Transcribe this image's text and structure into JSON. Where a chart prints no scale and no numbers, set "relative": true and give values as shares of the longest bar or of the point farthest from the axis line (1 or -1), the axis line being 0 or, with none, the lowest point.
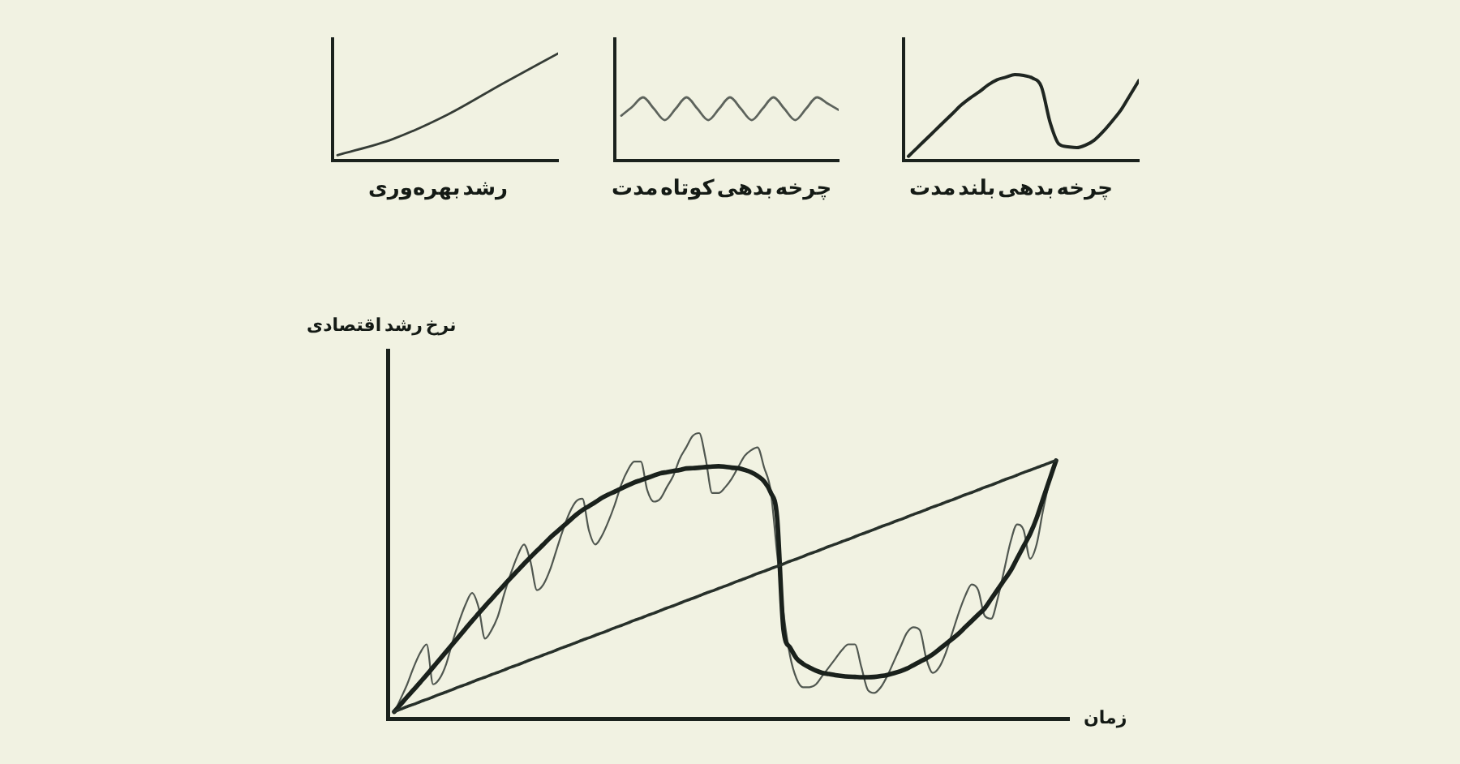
{
  "chart_data": [
    {
      "type": "line",
      "title": "رشد بهره‌وری",
      "relative": true,
      "categories": [
        null,
        null,
        null,
        null,
        null
      ],
      "series": [
        {
          "color": "#353c36",
          "values": [
            0.05,
            0.2,
            0.43,
            0.72,
            1
          ]
        }
      ]
    },
    {
      "type": "line",
      "title": "چرخه بدهی کوتاه مدت",
      "relative": true,
      "categories": [
        null,
        null,
        null,
        null,
        null,
        null,
        null,
        null,
        null,
        null,
        null,
        null,
        null,
        null,
        null,
        null,
        null,
        null,
        null,
        null,
        null
      ],
      "series": [
        {
          "color": "#5d635c",
          "values": [
            0.71,
            0.85,
            1,
            0.82,
            0.64,
            0.82,
            1,
            0.82,
            0.64,
            0.82,
            1,
            0.82,
            0.64,
            0.82,
            1,
            0.82,
            0.64,
            0.82,
            1,
            0.9,
            0.8
          ]
        }
      ]
    },
    {
      "type": "line",
      "title": "چرخه بدهی بلند مدت",
      "relative": true,
      "categories": [
        null,
        null,
        null,
        null,
        null,
        null,
        null,
        null,
        null,
        null,
        null,
        null,
        null,
        null,
        null,
        null,
        null,
        null,
        null,
        null,
        null,
        null,
        null,
        null,
        null,
        null,
        null
      ],
      "series": [
        {
          "color": "#1f2621",
          "values": [
            0.05,
            0.15,
            0.25,
            0.35,
            0.45,
            0.55,
            0.65,
            0.73,
            0.8,
            0.88,
            0.94,
            0.97,
            1,
            0.99,
            0.96,
            0.86,
            0.44,
            0.19,
            0.16,
            0.15,
            0.18,
            0.24,
            0.34,
            0.46,
            0.59,
            0.76,
            0.93
          ]
        }
      ]
    },
    {
      "type": "line",
      "xlabel": "زمان",
      "ylabel": "نرخ رشد اقتصادی",
      "relative": true,
      "categories": [
        null,
        null,
        null,
        null,
        null,
        null,
        null,
        null,
        null,
        null,
        null,
        null,
        null,
        null,
        null,
        null,
        null,
        null,
        null,
        null,
        null,
        null,
        null,
        null,
        null,
        null,
        null,
        null,
        null,
        null,
        null,
        null,
        null,
        null,
        null,
        null,
        null,
        null,
        null,
        null,
        null,
        null,
        null,
        null,
        null,
        null,
        null,
        null,
        null,
        null,
        null,
        null,
        null,
        null,
        null,
        null,
        null,
        null,
        null,
        null,
        null,
        null,
        null,
        null,
        null,
        null,
        null,
        null,
        null,
        null,
        null,
        null,
        null,
        null,
        null,
        null,
        null,
        null,
        null,
        null,
        null,
        null,
        null,
        null,
        null,
        null,
        null,
        null,
        null,
        null,
        null,
        null,
        null,
        null,
        null,
        null,
        null,
        null,
        null,
        null,
        null,
        null,
        null
      ],
      "series": [
        {
          "color": "#27302a",
          "values": [
            0.024,
            0.033,
            0.042,
            0.05,
            0.059,
            0.067,
            0.076,
            0.085,
            0.093,
            0.102,
            0.111,
            0.119,
            0.128,
            0.137,
            0.145,
            0.154,
            0.162,
            0.171,
            0.18,
            0.188,
            0.197,
            0.206,
            0.214,
            0.223,
            0.231,
            0.24,
            0.249,
            0.257,
            0.266,
            0.275,
            0.283,
            0.292,
            0.3,
            0.309,
            0.318,
            0.326,
            0.335,
            0.344,
            0.352,
            0.361,
            0.369,
            0.378,
            0.387,
            0.395,
            0.404,
            0.413,
            0.421,
            0.43,
            0.439,
            0.447,
            0.456,
            0.464,
            0.473,
            0.482,
            0.49,
            0.499,
            0.508,
            0.516,
            0.525,
            0.533,
            0.542,
            0.551,
            0.559,
            0.568,
            0.577,
            0.585,
            0.594,
            0.603,
            0.611,
            0.62,
            0.628,
            0.637,
            0.646,
            0.654,
            0.663,
            0.672,
            0.68,
            0.689,
            0.697,
            0.706,
            0.715,
            0.723,
            0.732,
            0.741,
            0.749,
            0.758,
            0.766,
            0.775,
            0.784,
            0.792,
            0.801,
            0.81,
            0.818,
            0.827,
            0.836,
            0.844,
            0.853,
            0.862,
            0.87,
            0.879,
            0.887,
            0.896,
            0.904
          ]
        },
        {
          "color": "#1a211c",
          "values": [
            0.024,
            0.05,
            0.076,
            0.101,
            0.127,
            0.153,
            0.18,
            0.207,
            0.234,
            0.261,
            0.288,
            0.315,
            0.342,
            0.368,
            0.394,
            0.419,
            0.444,
            0.469,
            0.494,
            0.518,
            0.542,
            0.565,
            0.588,
            0.61,
            0.633,
            0.653,
            0.673,
            0.693,
            0.713,
            0.73,
            0.744,
            0.758,
            0.773,
            0.785,
            0.795,
            0.806,
            0.817,
            0.827,
            0.835,
            0.843,
            0.851,
            0.859,
            0.863,
            0.867,
            0.871,
            0.876,
            0.877,
            0.879,
            0.881,
            0.883,
            0.884,
            0.882,
            0.879,
            0.877,
            0.871,
            0.863,
            0.85,
            0.831,
            0.793,
            0.706,
            0.31,
            0.249,
            0.211,
            0.192,
            0.179,
            0.168,
            0.16,
            0.156,
            0.152,
            0.149,
            0.147,
            0.146,
            0.145,
            0.145,
            0.146,
            0.149,
            0.153,
            0.159,
            0.166,
            0.175,
            0.187,
            0.199,
            0.211,
            0.225,
            0.243,
            0.261,
            0.279,
            0.298,
            0.32,
            0.342,
            0.364,
            0.386,
            0.419,
            0.452,
            0.485,
            0.518,
            0.561,
            0.604,
            0.647,
            0.702,
            0.77,
            0.837,
            0.904
          ]
        },
        {
          "color": "#505750",
          "values": [
            0.02,
            0.07,
            0.12,
            0.18,
            0.23,
            0.26,
            0.12,
            0.14,
            0.19,
            0.27,
            0.34,
            0.4,
            0.44,
            0.39,
            0.28,
            0.31,
            0.36,
            0.44,
            0.51,
            0.57,
            0.61,
            0.55,
            0.45,
            0.47,
            0.52,
            0.59,
            0.66,
            0.72,
            0.76,
            0.77,
            0.66,
            0.61,
            0.64,
            0.69,
            0.75,
            0.82,
            0.87,
            0.9,
            0.9,
            0.8,
            0.76,
            0.77,
            0.81,
            0.85,
            0.91,
            0.95,
            0.99,
            1,
            0.91,
            0.79,
            0.79,
            0.81,
            0.84,
            0.88,
            0.92,
            0.94,
            0.95,
            0.88,
            0.8,
            0.58,
            0.37,
            0.22,
            0.14,
            0.11,
            0.11,
            0.12,
            0.15,
            0.18,
            0.21,
            0.24,
            0.26,
            0.26,
            0.18,
            0.1,
            0.09,
            0.11,
            0.15,
            0.2,
            0.25,
            0.3,
            0.32,
            0.31,
            0.21,
            0.16,
            0.18,
            0.23,
            0.3,
            0.37,
            0.43,
            0.47,
            0.45,
            0.36,
            0.35,
            0.42,
            0.52,
            0.62,
            0.68,
            0.66,
            0.56,
            0.61,
            0.73,
            0.83,
            0.9
          ]
        }
      ]
    }
  ]
}
